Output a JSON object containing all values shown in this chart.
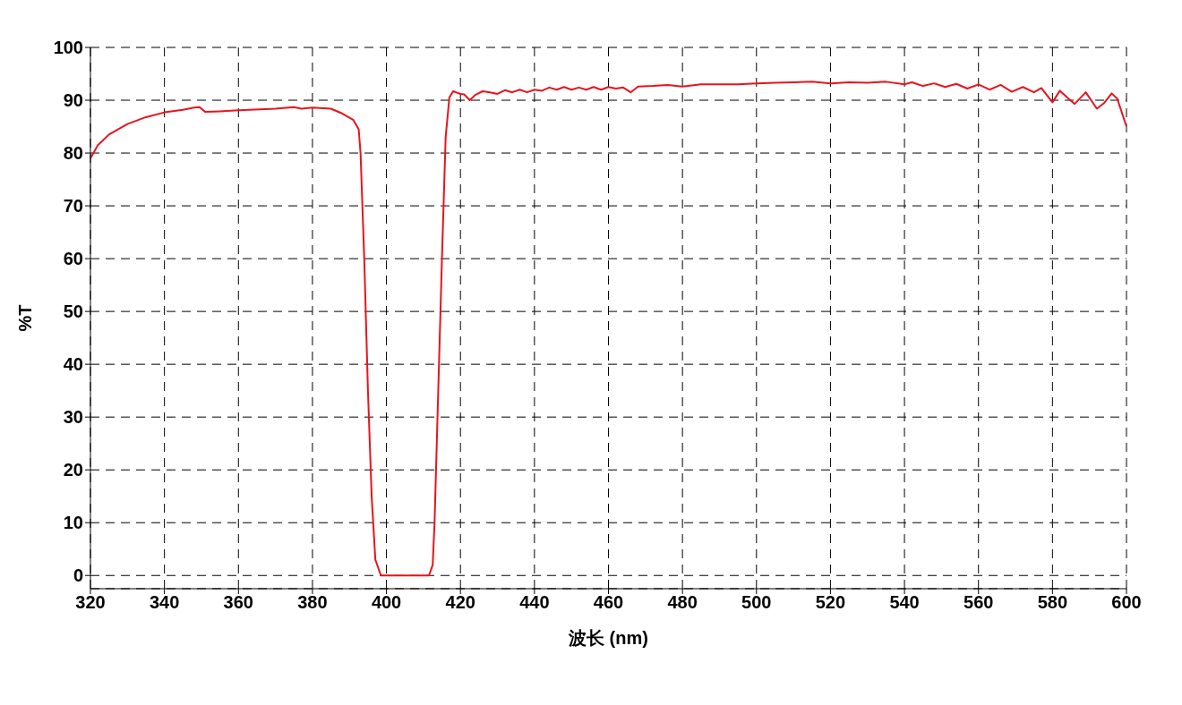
{
  "chart_data": {
    "type": "line",
    "xlabel": "波长 (nm)",
    "ylabel": "%T",
    "xlim": [
      320,
      600
    ],
    "ylim": [
      -2.5,
      100
    ],
    "xticks": [
      320,
      340,
      360,
      380,
      400,
      420,
      440,
      460,
      480,
      500,
      520,
      540,
      560,
      580,
      600
    ],
    "yticks": [
      0,
      10,
      20,
      30,
      40,
      50,
      60,
      70,
      80,
      90,
      100
    ],
    "grid": true,
    "legend": false,
    "marker": "none",
    "line_style": "solid",
    "x": [
      320,
      322,
      325,
      330,
      335,
      340,
      345,
      348,
      349.5,
      351,
      355,
      360,
      370,
      375,
      377,
      380,
      385,
      388,
      391,
      392.5,
      393,
      394,
      395,
      396,
      397,
      398.5,
      411.5,
      412.5,
      413,
      414,
      415,
      416,
      417,
      418,
      420,
      421,
      422.5,
      424,
      426,
      428,
      430,
      432,
      434,
      436,
      438,
      440,
      442,
      444,
      446,
      448,
      450,
      452,
      454,
      456,
      458,
      460,
      462,
      464,
      466,
      468,
      472,
      476,
      480,
      485,
      490,
      495,
      500,
      505,
      510,
      515,
      520,
      525,
      530,
      535,
      540,
      542,
      545,
      548,
      551,
      554,
      557,
      560,
      563,
      566,
      569,
      572,
      575,
      577,
      580,
      582,
      584,
      586,
      589,
      592,
      594,
      596,
      597.5,
      600
    ],
    "series": [
      {
        "color": "#e8141c",
        "values": [
          79,
          81.5,
          83.5,
          85.5,
          86.8,
          87.7,
          88.2,
          88.6,
          88.7,
          87.8,
          87.9,
          88.1,
          88.4,
          88.7,
          88.4,
          88.6,
          88.4,
          87.5,
          86.3,
          84.5,
          80,
          60,
          35,
          15,
          3,
          0,
          0,
          2,
          10,
          35,
          60,
          83,
          90.5,
          91.7,
          91.2,
          91.1,
          90,
          91,
          91.7,
          91.5,
          91.2,
          91.9,
          91.5,
          92,
          91.5,
          92,
          91.8,
          92.4,
          92,
          92.5,
          92,
          92.4,
          92,
          92.5,
          92,
          92.5,
          92.2,
          92.4,
          91.5,
          92.6,
          92.7,
          92.9,
          92.6,
          93,
          93,
          93,
          93.2,
          93.3,
          93.4,
          93.5,
          93.2,
          93.4,
          93.3,
          93.5,
          93,
          93.4,
          92.7,
          93.2,
          92.5,
          93.1,
          92.2,
          93,
          92,
          92.9,
          91.6,
          92.5,
          91.5,
          92.3,
          89.6,
          91.8,
          90.5,
          89.3,
          91.5,
          88.4,
          89.5,
          91.3,
          90.3,
          85
        ]
      }
    ]
  }
}
